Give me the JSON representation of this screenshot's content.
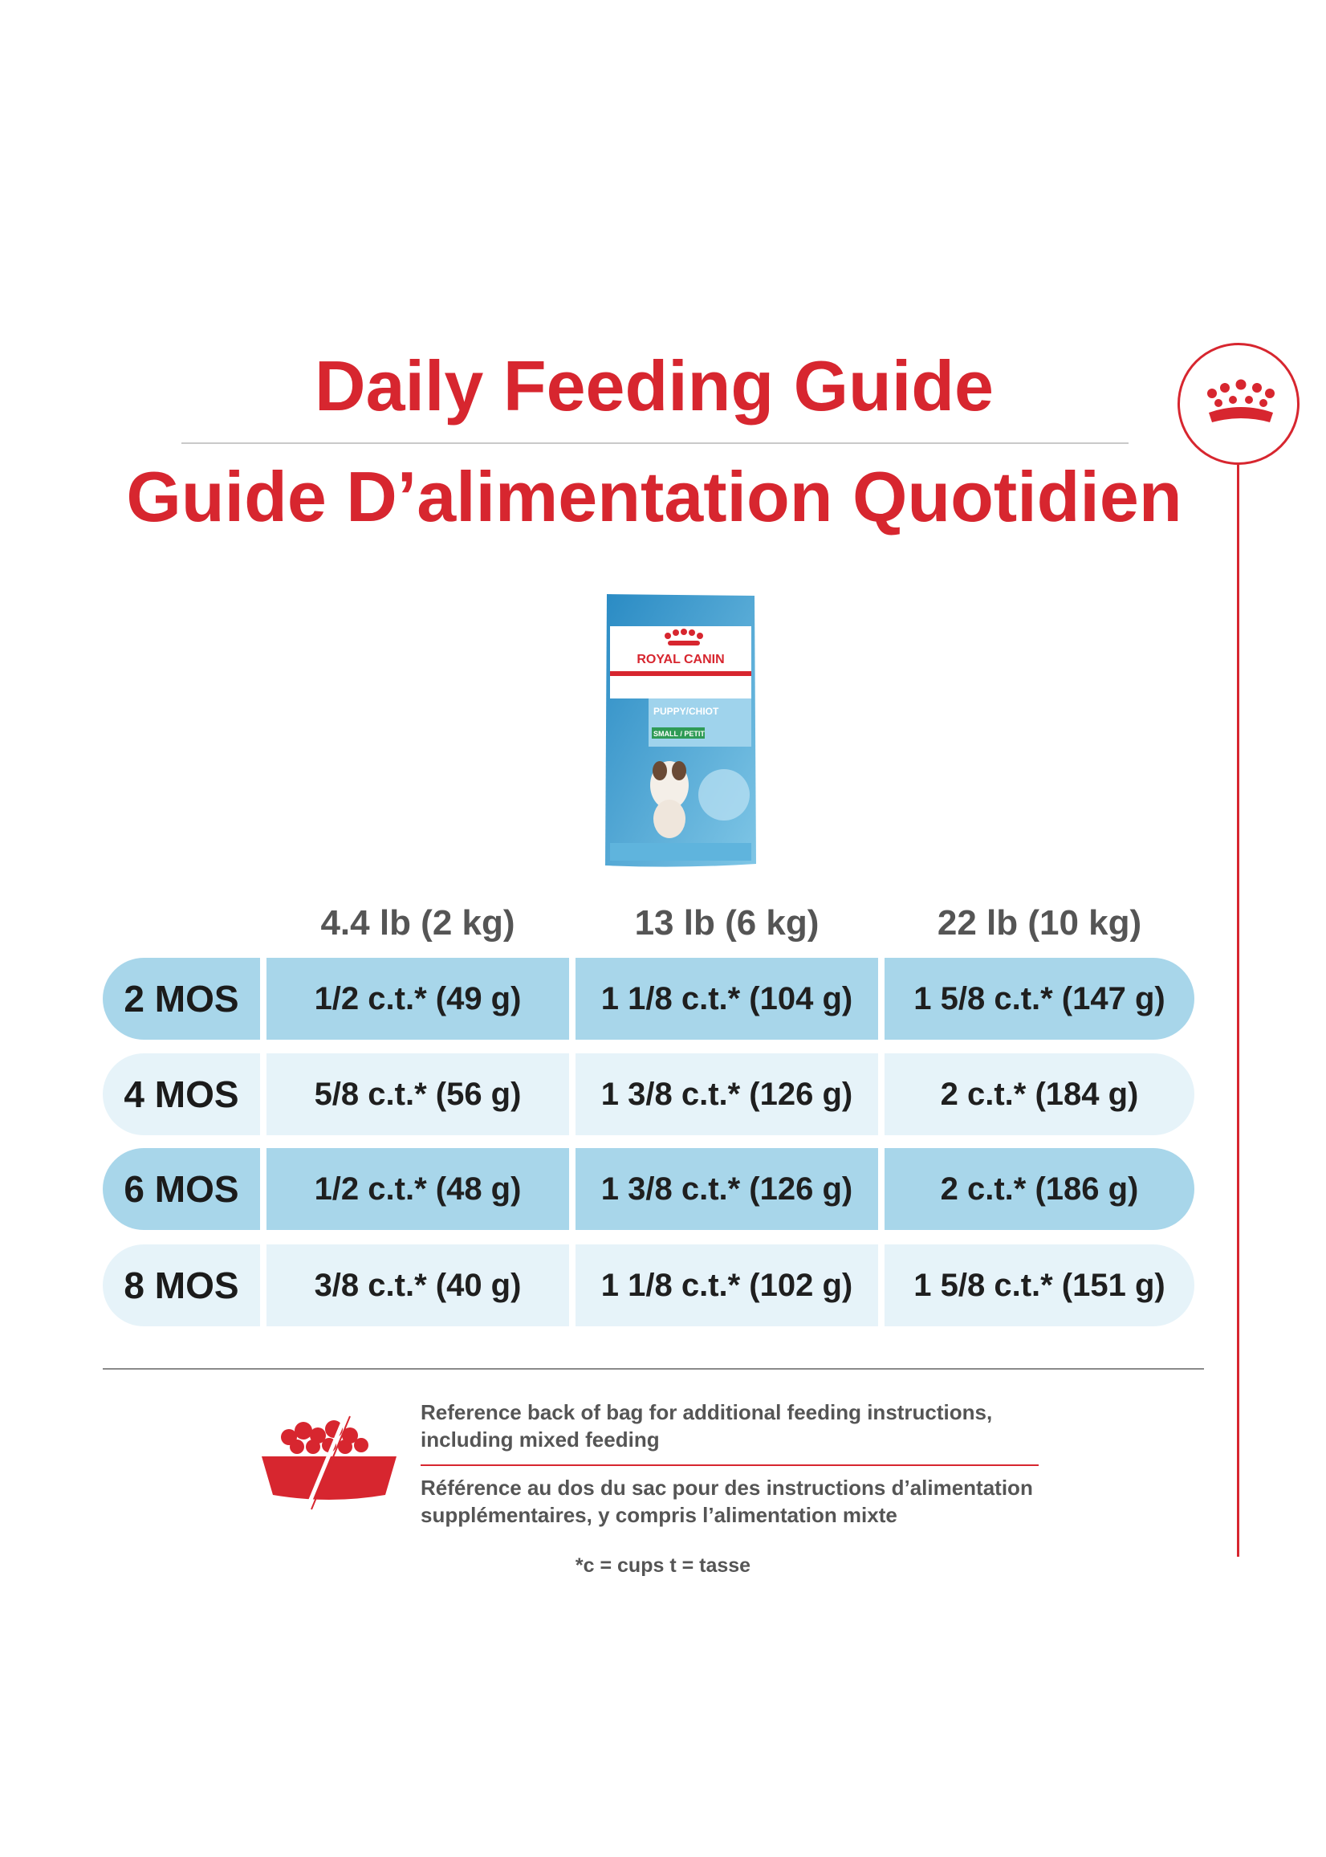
{
  "titles": {
    "english": "Daily Feeding Guide",
    "french": "Guide D’alimentation Quotidien"
  },
  "icons": {
    "crest": "crown-icon",
    "bowl": "food-bowl-icon",
    "brand_color": "#d7262f"
  },
  "product": {
    "brand": "ROYAL CANIN",
    "name": "PUPPY/CHIOT",
    "size": "SMALL / PETIT"
  },
  "table": {
    "columns": [
      "4.4 lb (2 kg)",
      "13 lb (6 kg)",
      "22 lb (10 kg)"
    ],
    "rows": [
      {
        "age": "2 MOS",
        "values": [
          "1/2 c.t.* (49 g)",
          "1 1/8 c.t.* (104 g)",
          "1 5/8 c.t.* (147 g)"
        ]
      },
      {
        "age": "4 MOS",
        "values": [
          "5/8 c.t.* (56 g)",
          "1 3/8 c.t.* (126 g)",
          "2 c.t.* (184 g)"
        ]
      },
      {
        "age": "6 MOS",
        "values": [
          "1/2 c.t.* (48 g)",
          "1 3/8 c.t.* (126 g)",
          "2 c.t.* (186 g)"
        ]
      },
      {
        "age": "8 MOS",
        "values": [
          "3/8 c.t.* (40 g)",
          "1 1/8 c.t.* (102 g)",
          "1 5/8 c.t.* (151 g)"
        ]
      }
    ]
  },
  "notes": {
    "english_line1": "Reference back of bag for additional feeding instructions,",
    "english_line2": "including mixed feeding",
    "french_line1": "Référence au dos du sac pour des instructions d’alimentation",
    "french_line2": "supplémentaires, y compris l’alimentation mixte",
    "footnote": "*c = cups t = tasse"
  }
}
